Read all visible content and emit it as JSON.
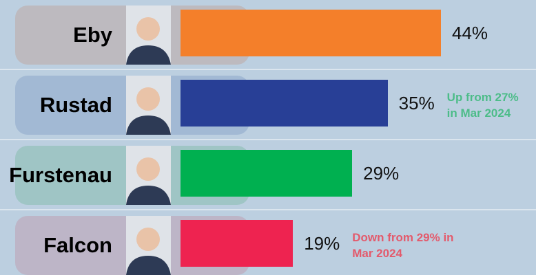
{
  "chart_data": {
    "type": "bar",
    "orientation": "horizontal",
    "categories": [
      "Eby",
      "Rustad",
      "Furstenau",
      "Falcon"
    ],
    "series": [
      {
        "values": [
          44,
          35,
          29,
          19
        ],
        "value_labels": [
          "44%",
          "35%",
          "29%",
          "19%"
        ],
        "colors": [
          "#f47f2a",
          "#283f96",
          "#00b050",
          "#ee2350"
        ]
      }
    ],
    "annotations": [
      {
        "category": "Rustad",
        "text": "Up from 27% in Mar 2024",
        "color": "#4cbc88"
      },
      {
        "category": "Falcon",
        "text": "Down from 29% in Mar 2024",
        "color": "#e35a6c"
      }
    ]
  }
}
